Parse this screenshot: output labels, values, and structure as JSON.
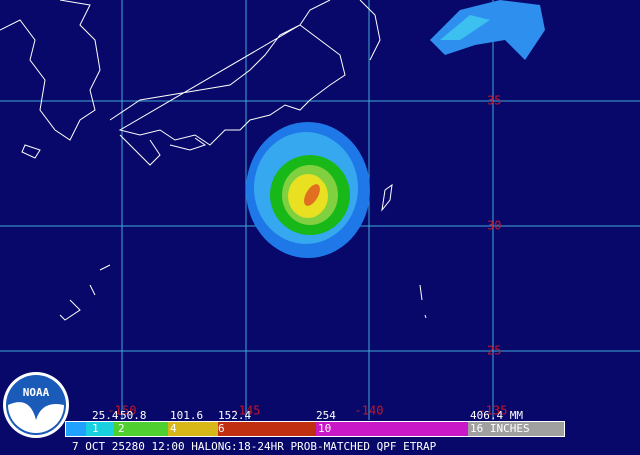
{
  "map": {
    "latitude_labels": [
      "35",
      "30",
      "25"
    ],
    "longitude_labels": [
      "-150",
      "-145",
      "-140",
      "-135"
    ],
    "legend": {
      "mm_labels": [
        "25.4",
        "50.8",
        "101.6",
        "152.4",
        "254",
        "406.4 MM"
      ],
      "inch_labels": [
        "1",
        "2",
        "4",
        "6",
        "10",
        "16 INCHES"
      ]
    },
    "caption": "7 OCT 25280 12:00 HALONG:18-24HR PROB-MATCHED QPF ETRAP",
    "logo": "NOAA"
  }
}
